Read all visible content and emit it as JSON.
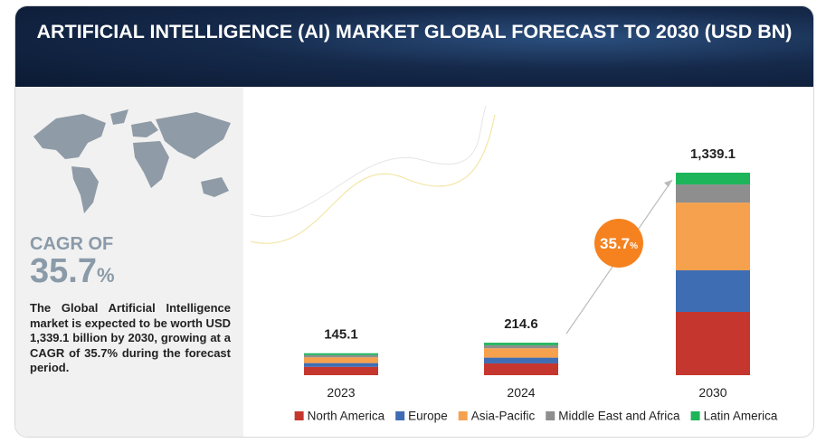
{
  "chart_data": {
    "type": "bar",
    "stacked": true,
    "title": "ARTIFICIAL INTELLIGENCE (AI) MARKET GLOBAL FORECAST TO 2030 (USD BN)",
    "categories": [
      "2023",
      "2024",
      "2030"
    ],
    "series": [
      {
        "name": "North America",
        "color": "#c5372e",
        "values": [
          55.1,
          78,
          418.5
        ]
      },
      {
        "name": "Europe",
        "color": "#3e6db4",
        "values": [
          25,
          38,
          275
        ]
      },
      {
        "name": "Asia-Pacific",
        "color": "#f6a14d",
        "values": [
          38,
          62,
          447.6
        ]
      },
      {
        "name": "Middle East and Africa",
        "color": "#8e8e8e",
        "values": [
          15,
          20,
          120
        ]
      },
      {
        "name": "Latin America",
        "color": "#1db45a",
        "values": [
          12,
          16.6,
          78
        ]
      }
    ],
    "totals": [
      145.1,
      214.6,
      1339.1
    ],
    "total_labels": [
      "145.1",
      "214.6",
      "1,339.1"
    ],
    "cagr": {
      "label": "CAGR OF",
      "value": 35.7,
      "unit": "%",
      "color": "#f5821f"
    },
    "description": "The Global Artificial Intelligence market is expected to be worth USD 1,339.1 billion by 2030, growing at a CAGR of 35.7% during the forecast period.",
    "legend": "bottom"
  }
}
